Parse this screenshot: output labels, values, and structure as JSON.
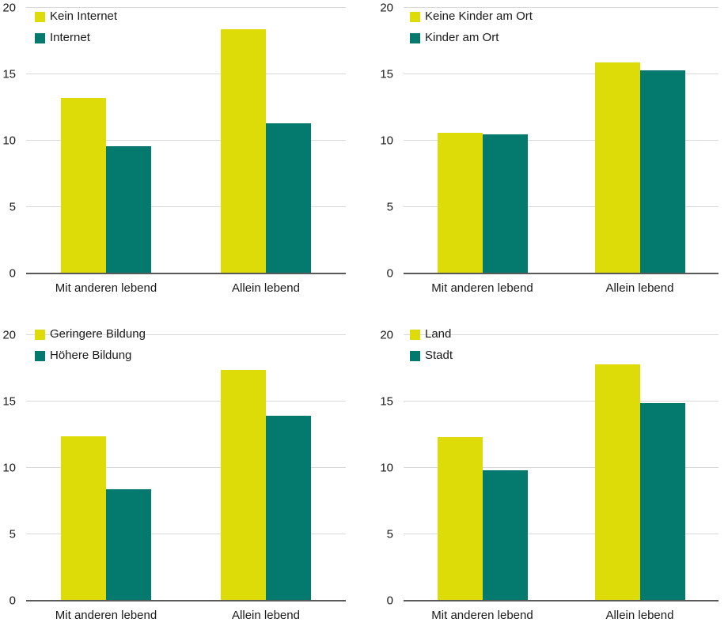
{
  "colors": {
    "series_yellow": "#dedc08",
    "series_teal": "#047a6e",
    "gridline": "#d9d9d9",
    "axis_line": "#595959",
    "text": "#1a1a1a",
    "background": "#ffffff"
  },
  "chart_data": [
    {
      "id": "internet",
      "type": "bar",
      "categories": [
        "Mit anderen lebend",
        "Allein lebend"
      ],
      "series": [
        {
          "name": "Kein Internet",
          "color_key": "series_yellow",
          "values": [
            13.2,
            18.4
          ]
        },
        {
          "name": "Internet",
          "color_key": "series_teal",
          "values": [
            9.6,
            11.3
          ]
        }
      ],
      "ylim": [
        0,
        20
      ],
      "y_ticks": [
        0,
        5,
        10,
        15,
        20
      ],
      "grid": true,
      "legend_position": "inside-top-left",
      "title": "",
      "xlabel": "",
      "ylabel": ""
    },
    {
      "id": "kinder-am-ort",
      "type": "bar",
      "categories": [
        "Mit anderen lebend",
        "Allein lebend"
      ],
      "series": [
        {
          "name": "Keine Kinder am Ort",
          "color_key": "series_yellow",
          "values": [
            10.6,
            15.9
          ]
        },
        {
          "name": "Kinder am Ort",
          "color_key": "series_teal",
          "values": [
            10.5,
            15.3
          ]
        }
      ],
      "ylim": [
        0,
        20
      ],
      "y_ticks": [
        0,
        5,
        10,
        15,
        20
      ],
      "grid": true,
      "legend_position": "inside-top-left",
      "title": "",
      "xlabel": "",
      "ylabel": ""
    },
    {
      "id": "bildung",
      "type": "bar",
      "categories": [
        "Mit anderen lebend",
        "Allein lebend"
      ],
      "series": [
        {
          "name": "Geringere Bildung",
          "color_key": "series_yellow",
          "values": [
            12.4,
            17.4
          ]
        },
        {
          "name": "Höhere Bildung",
          "color_key": "series_teal",
          "values": [
            8.4,
            13.9
          ]
        }
      ],
      "ylim": [
        0,
        20
      ],
      "y_ticks": [
        0,
        5,
        10,
        15,
        20
      ],
      "grid": true,
      "legend_position": "inside-top-left",
      "title": "",
      "xlabel": "",
      "ylabel": ""
    },
    {
      "id": "land-stadt",
      "type": "bar",
      "categories": [
        "Mit anderen lebend",
        "Allein lebend"
      ],
      "series": [
        {
          "name": "Land",
          "color_key": "series_yellow",
          "values": [
            12.3,
            17.8
          ]
        },
        {
          "name": "Stadt",
          "color_key": "series_teal",
          "values": [
            9.8,
            14.9
          ]
        }
      ],
      "ylim": [
        0,
        20
      ],
      "y_ticks": [
        0,
        5,
        10,
        15,
        20
      ],
      "grid": true,
      "legend_position": "inside-top-left",
      "title": "",
      "xlabel": "",
      "ylabel": ""
    }
  ]
}
